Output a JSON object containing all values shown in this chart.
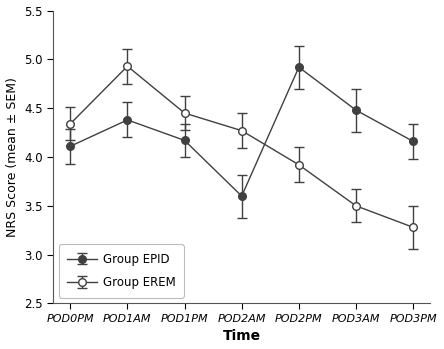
{
  "x_labels": [
    "POD0PM",
    "POD1AM",
    "POD1PM",
    "POD2AM",
    "POD2PM",
    "POD3AM",
    "POD3PM"
  ],
  "epid_mean": [
    4.11,
    4.38,
    4.17,
    3.6,
    4.92,
    4.48,
    4.16
  ],
  "epid_sem": [
    0.18,
    0.18,
    0.17,
    0.22,
    0.22,
    0.22,
    0.18
  ],
  "erem_mean": [
    4.34,
    4.93,
    4.45,
    4.27,
    3.92,
    3.5,
    3.28
  ],
  "erem_sem": [
    0.17,
    0.18,
    0.17,
    0.18,
    0.18,
    0.17,
    0.22
  ],
  "ylim": [
    2.5,
    5.5
  ],
  "yticks": [
    2.5,
    3.0,
    3.5,
    4.0,
    4.5,
    5.0,
    5.5
  ],
  "ylabel": "NRS Score (mean ± SEM)",
  "xlabel": "Time",
  "legend_labels": [
    "Group EPID",
    "Group EREM"
  ],
  "line_color": "#404040",
  "background_color": "#ffffff"
}
